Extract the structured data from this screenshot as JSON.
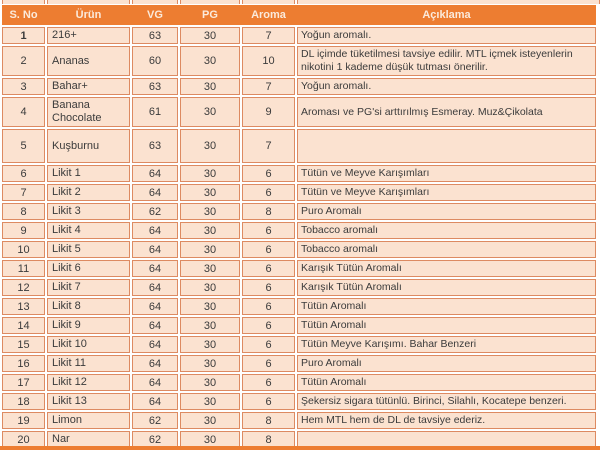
{
  "table": {
    "columns": [
      {
        "key": "sno",
        "label": "S. No"
      },
      {
        "key": "urun",
        "label": "Ürün"
      },
      {
        "key": "vg",
        "label": "VG"
      },
      {
        "key": "pg",
        "label": "PG"
      },
      {
        "key": "aroma",
        "label": "Aroma"
      },
      {
        "key": "aciklama",
        "label": "Açıklama"
      }
    ],
    "rows": [
      {
        "sno": "1",
        "urun": "216+",
        "vg": "63",
        "pg": "30",
        "aroma": "7",
        "aciklama": "Yoğun aromalı.",
        "bold_sno": true
      },
      {
        "sno": "2",
        "urun": "Ananas",
        "vg": "60",
        "pg": "30",
        "aroma": "10",
        "aciklama": "DL içimde tüketilmesi tavsiye edilir. MTL içmek isteyenlerin nikotini 1 kademe düşük tutması önerilir."
      },
      {
        "sno": "3",
        "urun": "Bahar+",
        "vg": "63",
        "pg": "30",
        "aroma": "7",
        "aciklama": "Yoğun aromalı."
      },
      {
        "sno": "4",
        "urun": "Banana Chocolate",
        "vg": "61",
        "pg": "30",
        "aroma": "9",
        "aciklama": "Aroması ve PG'si arttırılmış Esmeray. Muz&Çikolata"
      },
      {
        "sno": "5",
        "urun": "Kuşburnu",
        "vg": "63",
        "pg": "30",
        "aroma": "7",
        "aciklama": "",
        "tall": true
      },
      {
        "sno": "6",
        "urun": "Likit 1",
        "vg": "64",
        "pg": "30",
        "aroma": "6",
        "aciklama": "Tütün ve Meyve Karışımları"
      },
      {
        "sno": "7",
        "urun": "Likit 2",
        "vg": "64",
        "pg": "30",
        "aroma": "6",
        "aciklama": "Tütün ve Meyve Karışımları"
      },
      {
        "sno": "8",
        "urun": "Likit 3",
        "vg": "62",
        "pg": "30",
        "aroma": "8",
        "aciklama": "Puro Aromalı"
      },
      {
        "sno": "9",
        "urun": "Likit 4",
        "vg": "64",
        "pg": "30",
        "aroma": "6",
        "aciklama": "Tobacco aromalı"
      },
      {
        "sno": "10",
        "urun": "Likit 5",
        "vg": "64",
        "pg": "30",
        "aroma": "6",
        "aciklama": "Tobacco aromalı"
      },
      {
        "sno": "11",
        "urun": "Likit 6",
        "vg": "64",
        "pg": "30",
        "aroma": "6",
        "aciklama": "Karışık Tütün Aromalı"
      },
      {
        "sno": "12",
        "urun": "Likit 7",
        "vg": "64",
        "pg": "30",
        "aroma": "6",
        "aciklama": "Karışık Tütün Aromalı"
      },
      {
        "sno": "13",
        "urun": "Likit 8",
        "vg": "64",
        "pg": "30",
        "aroma": "6",
        "aciklama": "Tütün Aromalı"
      },
      {
        "sno": "14",
        "urun": "Likit 9",
        "vg": "64",
        "pg": "30",
        "aroma": "6",
        "aciklama": "Tütün Aromalı"
      },
      {
        "sno": "15",
        "urun": "Likit 10",
        "vg": "64",
        "pg": "30",
        "aroma": "6",
        "aciklama": "Tütün Meyve Karışımı. Bahar Benzeri"
      },
      {
        "sno": "16",
        "urun": "Likit 11",
        "vg": "64",
        "pg": "30",
        "aroma": "6",
        "aciklama": "Puro Aromalı"
      },
      {
        "sno": "17",
        "urun": "Likit 12",
        "vg": "64",
        "pg": "30",
        "aroma": "6",
        "aciklama": "Tütün Aromalı"
      },
      {
        "sno": "18",
        "urun": "Likit 13",
        "vg": "64",
        "pg": "30",
        "aroma": "6",
        "aciklama": "Şekersiz sigara  tütünlü. Birinci, Silahlı, Kocatepe benzeri."
      },
      {
        "sno": "19",
        "urun": "Limon",
        "vg": "62",
        "pg": "30",
        "aroma": "8",
        "aciklama": "Hem MTL hem de DL de tavsiye ederiz."
      },
      {
        "sno": "20",
        "urun": "Nar",
        "vg": "62",
        "pg": "30",
        "aroma": "8",
        "aciklama": ""
      }
    ],
    "colors": {
      "header_bg": "#ED7D31",
      "header_text": "#FBEADB",
      "cell_bg": "#FBE2D0",
      "cell_border": "#DD8A61",
      "body_text": "#3B3B3B",
      "bottom_strip": "#ED7D31"
    }
  }
}
